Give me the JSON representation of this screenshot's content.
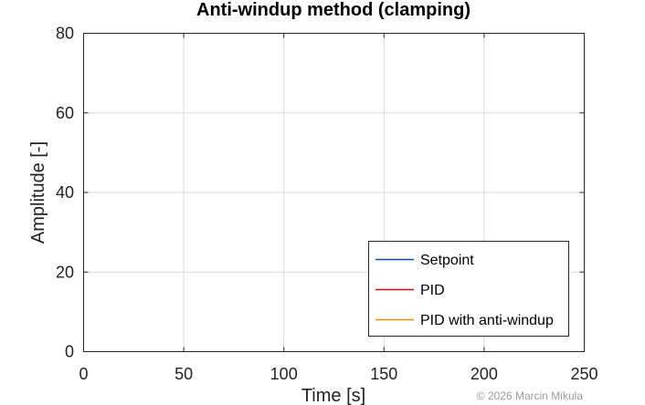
{
  "chart_data": {
    "type": "line",
    "title": "Anti-windup method (clamping)",
    "xlabel": "Time [s]",
    "ylabel": "Amplitude [-]",
    "xlim": [
      0,
      250
    ],
    "ylim": [
      0,
      80
    ],
    "xticks": [
      0,
      50,
      100,
      150,
      200,
      250
    ],
    "yticks": [
      0,
      20,
      40,
      60,
      80
    ],
    "grid": true,
    "legend_position": "bottom-right",
    "series": [
      {
        "name": "Setpoint",
        "color": "#0e4ea0",
        "x": [],
        "y": []
      },
      {
        "name": "PID",
        "color": "#cc1010",
        "x": [],
        "y": []
      },
      {
        "name": "PID with anti-windup",
        "color": "#f08a00",
        "x": [],
        "y": []
      }
    ]
  },
  "credit": "© 2026 Marcin Mikula"
}
